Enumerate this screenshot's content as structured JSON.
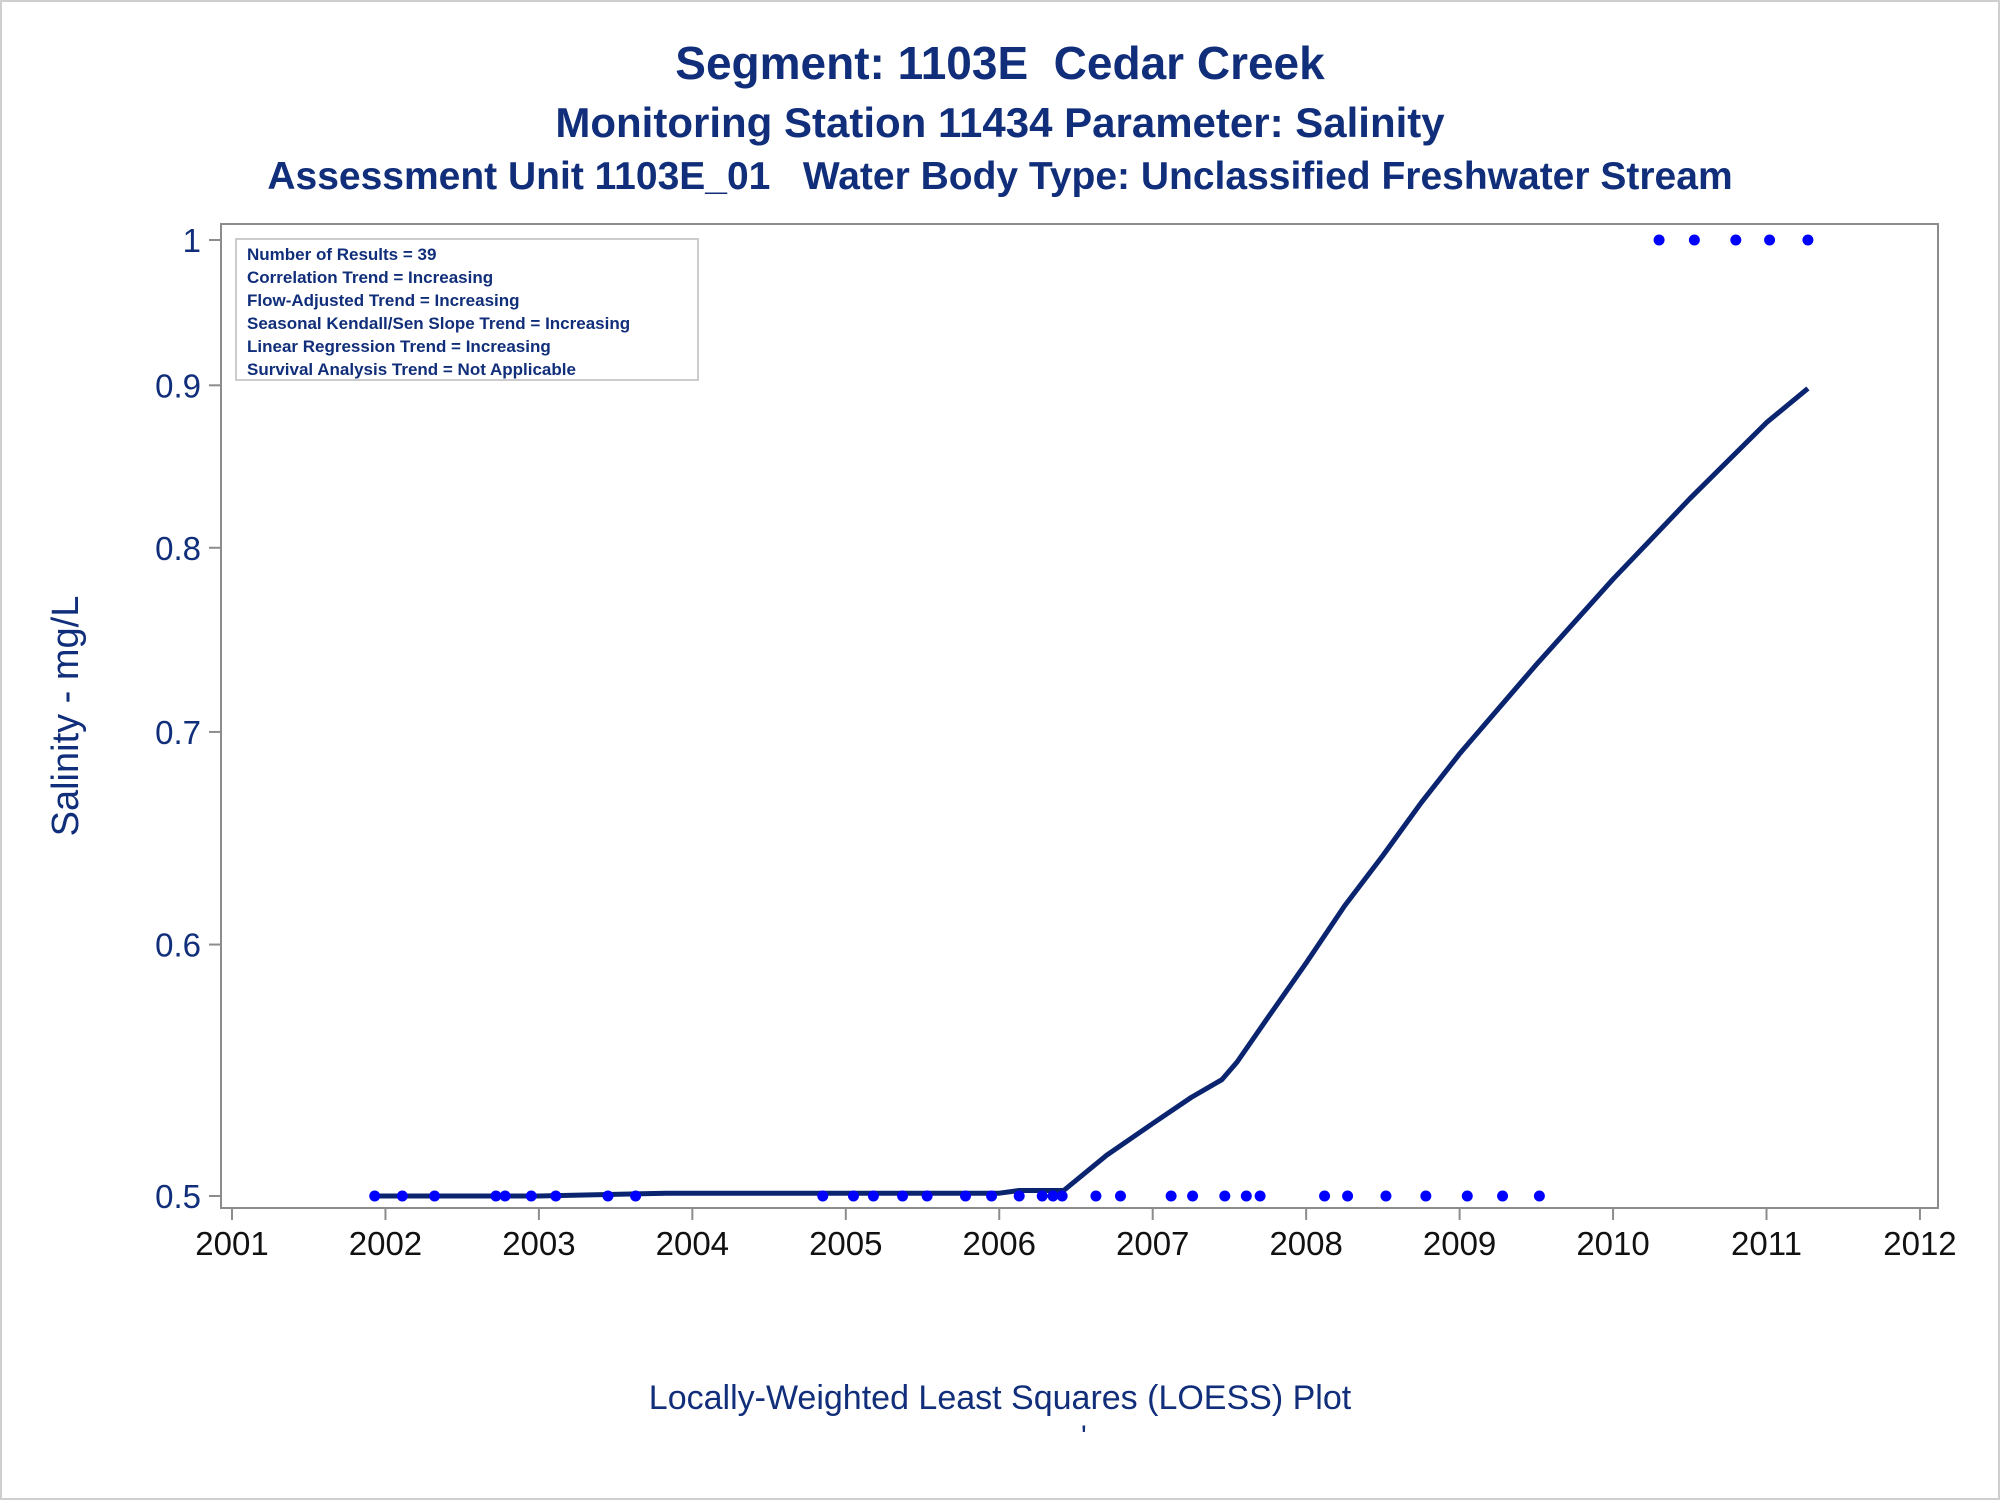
{
  "titles": {
    "line1": "Segment: 1103E  Cedar Creek",
    "line2": "Monitoring Station 11434 Parameter: Salinity",
    "line3": "Assessment Unit 1103E_01   Water Body Type: Unclassified Freshwater Stream"
  },
  "footnote": "Locally-Weighted Least Squares (LOESS) Plot",
  "footnote2": "'",
  "legend_lines": [
    "Number of Results = 39",
    "Correlation Trend = Increasing",
    "Flow-Adjusted Trend = Increasing",
    "Seasonal Kendall/Sen Slope Trend = Increasing",
    "Linear Regression Trend = Increasing",
    "Survival Analysis Trend = Not Applicable"
  ],
  "colors": {
    "text": "#112e7a",
    "points": "#0000ff",
    "line": "#0a2470",
    "axis": "#8c8c8c"
  },
  "chart_data": {
    "type": "scatter",
    "xlabel": "",
    "ylabel": "Salinity - mg/L",
    "x_ticks": [
      "2001",
      "2002",
      "2003",
      "2004",
      "2005",
      "2006",
      "2007",
      "2008",
      "2009",
      "2010",
      "2011",
      "2012"
    ],
    "y_ticks": [
      "0.5",
      "0.6",
      "0.7",
      "0.8",
      "0.9",
      "1"
    ],
    "y_scale": "log",
    "xlim": [
      2001,
      2012
    ],
    "ylim": [
      0.5,
      1
    ],
    "grid": false,
    "legend_position": "top-left",
    "series": [
      {
        "type": "scatter",
        "x": [
          2001.93,
          2002.11,
          2002.32,
          2002.72,
          2002.78,
          2002.95,
          2003.11,
          2003.45,
          2003.63,
          2004.85,
          2005.05,
          2005.18,
          2005.37,
          2005.53,
          2005.78,
          2005.95,
          2006.13,
          2006.28,
          2006.35,
          2006.41,
          2006.63,
          2006.79,
          2007.12,
          2007.26,
          2007.47,
          2007.61,
          2007.7,
          2008.12,
          2008.27,
          2008.52,
          2008.78,
          2009.05,
          2009.28,
          2009.52,
          2010.3,
          2010.53,
          2010.8,
          2011.02,
          2011.27
        ],
        "y": [
          0.5,
          0.5,
          0.5,
          0.5,
          0.5,
          0.5,
          0.5,
          0.5,
          0.5,
          0.5,
          0.5,
          0.5,
          0.5,
          0.5,
          0.5,
          0.5,
          0.5,
          0.5,
          0.5,
          0.5,
          0.5,
          0.5,
          0.5,
          0.5,
          0.5,
          0.5,
          0.5,
          0.5,
          0.5,
          0.5,
          0.5,
          0.5,
          0.5,
          0.5,
          1,
          1,
          1,
          1,
          1
        ]
      },
      {
        "type": "line",
        "x": [
          2001.93,
          2003.0,
          2003.83,
          2005.0,
          2006.0,
          2006.13,
          2006.42,
          2006.7,
          2007.0,
          2007.25,
          2007.45,
          2007.55,
          2007.75,
          2008.0,
          2008.25,
          2008.5,
          2008.75,
          2009.0,
          2009.5,
          2010.0,
          2010.5,
          2011.0,
          2011.27
        ],
        "y": [
          0.5,
          0.5,
          0.501,
          0.501,
          0.501,
          0.502,
          0.502,
          0.515,
          0.527,
          0.537,
          0.544,
          0.551,
          0.569,
          0.592,
          0.617,
          0.64,
          0.665,
          0.689,
          0.735,
          0.782,
          0.829,
          0.876,
          0.898
        ]
      }
    ]
  }
}
